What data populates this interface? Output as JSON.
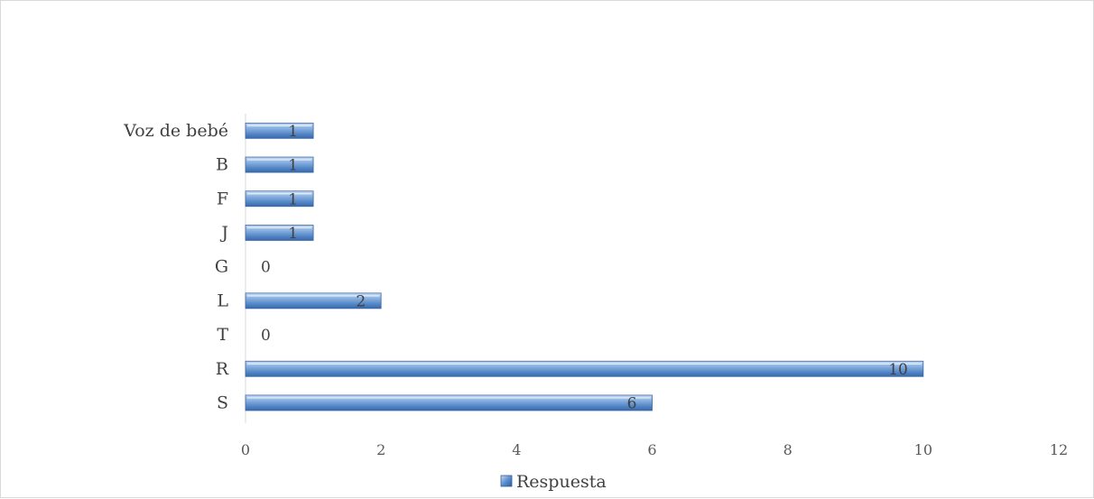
{
  "chart_data": {
    "type": "bar",
    "orientation": "horizontal",
    "categories": [
      "S",
      "R",
      "T",
      "L",
      "G",
      "J",
      "F",
      "B",
      "Voz de bebé"
    ],
    "series": [
      {
        "name": "Respuesta",
        "values": [
          6,
          10,
          0,
          2,
          0,
          1,
          1,
          1,
          1
        ],
        "color": "#5b8fd0"
      }
    ],
    "title": "",
    "xlabel": "",
    "ylabel": "",
    "xlim": [
      0,
      12
    ],
    "x_ticks": [
      0,
      2,
      4,
      6,
      8,
      10,
      12
    ],
    "grid": false,
    "legend": "bottom",
    "data_labels": true
  }
}
